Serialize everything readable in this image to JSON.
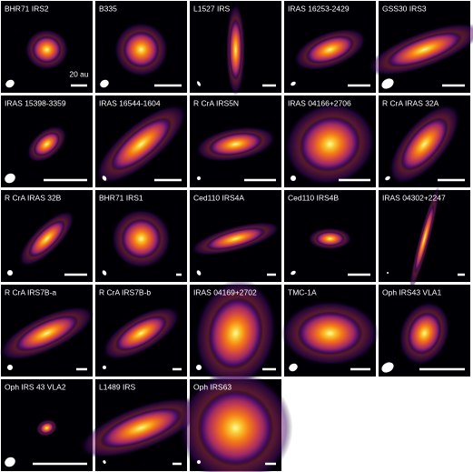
{
  "panels": [
    {
      "label": "BHR71 IRS2",
      "scale_label": "20 au"
    },
    {
      "label": "B335"
    },
    {
      "label": "L1527 IRS"
    },
    {
      "label": "IRAS 16253-2429"
    },
    {
      "label": "GSS30 IRS3"
    },
    {
      "label": "IRAS 15398-3359"
    },
    {
      "label": "IRAS 16544-1604"
    },
    {
      "label": "R CrA IRS5N"
    },
    {
      "label": "IRAS 04166+2706"
    },
    {
      "label": "R CrA IRAS 32A"
    },
    {
      "label": "R CrA IRAS 32B"
    },
    {
      "label": "BHR71 IRS1"
    },
    {
      "label": "Ced110 IRS4A"
    },
    {
      "label": "Ced110 IRS4B"
    },
    {
      "label": "IRAS 04302+2247"
    },
    {
      "label": "R CrA IRS7B-a"
    },
    {
      "label": "R CrA IRS7B-b"
    },
    {
      "label": "IRAS 04169+2702"
    },
    {
      "label": "TMC-1A"
    },
    {
      "label": "Oph IRS43 VLA1"
    },
    {
      "label": "Oph IRS 43 VLA2"
    },
    {
      "label": "L1489 IRS"
    },
    {
      "label": "Oph IRS63"
    }
  ]
}
